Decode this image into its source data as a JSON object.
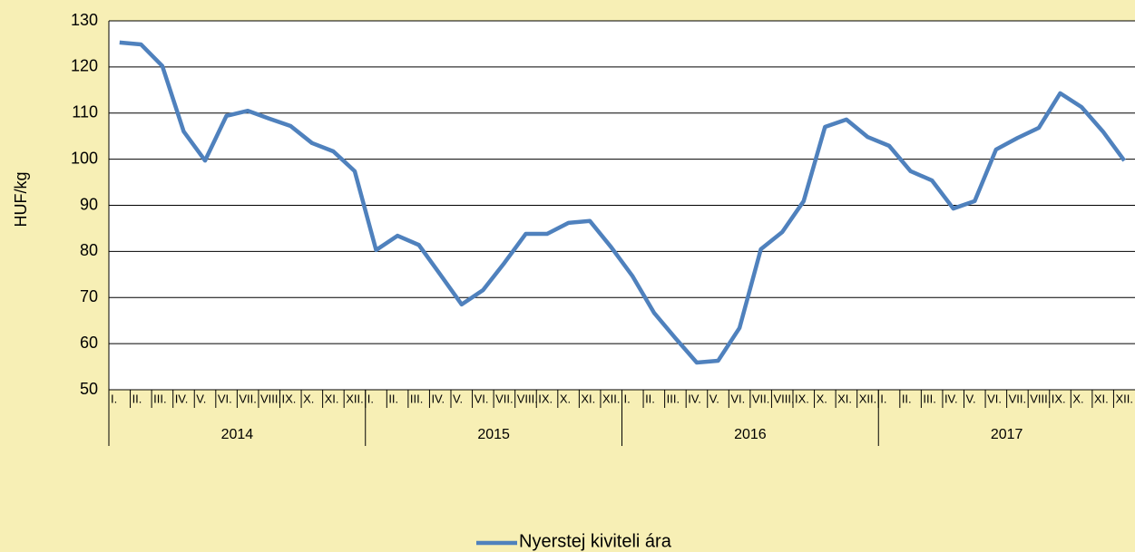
{
  "chart_data": {
    "type": "line",
    "y_label": "HUF/kg",
    "categories": [
      "I.",
      "II.",
      "III.",
      "IV.",
      "V.",
      "VI.",
      "VII.",
      "VIII.",
      "IX.",
      "X.",
      "XI.",
      "XII.",
      "I.",
      "II.",
      "III.",
      "IV.",
      "V.",
      "VI.",
      "VII.",
      "VIII.",
      "IX.",
      "X.",
      "XI.",
      "XII.",
      "I.",
      "II.",
      "III.",
      "IV.",
      "V.",
      "VI.",
      "VII.",
      "VIII.",
      "IX.",
      "X.",
      "XI.",
      "XII.",
      "I.",
      "II.",
      "III.",
      "IV.",
      "V.",
      "VI.",
      "VII.",
      "VIII.",
      "IX.",
      "X.",
      "XI.",
      "XII."
    ],
    "category_groups": [
      "2014",
      "2015",
      "2016",
      "2017"
    ],
    "series": [
      {
        "name": "Nyerstej kiviteli ára",
        "color": "#4f81bd",
        "values": [
          125.3,
          124.9,
          120.2,
          106,
          99.7,
          109.4,
          110.5,
          108.8,
          107.2,
          103.5,
          101.7,
          97.4,
          80.3,
          83.4,
          81.4,
          75,
          68.5,
          71.6,
          77.5,
          83.8,
          83.8,
          86.2,
          86.6,
          80.9,
          74.6,
          66.7,
          61.2,
          55.9,
          56.3,
          63.4,
          80.5,
          84.2,
          90.9,
          107,
          108.6,
          104.8,
          102.9,
          97.4,
          95.4,
          89.3,
          90.9,
          102.1,
          104.6,
          106.8,
          114.3,
          111.3,
          106,
          99.7
        ]
      }
    ],
    "ylim": [
      50,
      130
    ],
    "yticks": [
      50,
      60,
      70,
      80,
      90,
      100,
      110,
      120,
      130
    ],
    "grid": true,
    "legend": "bottom"
  }
}
